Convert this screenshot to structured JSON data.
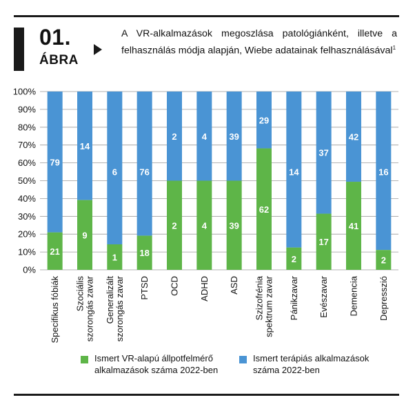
{
  "figure": {
    "number": "01.",
    "label": "ÁBRA",
    "title": "A VR-alkalmazások megoszlása patológiánként, illetve a felhasználás módja alapján, Wiebe adatainak felhasználásával",
    "title_footnote": "1"
  },
  "colors": {
    "green": "#5eb548",
    "blue": "#4a94d4"
  },
  "chart_data": {
    "type": "bar",
    "stacked": true,
    "normalized": true,
    "categories": [
      "Specifikus fóbiák",
      "Szociális szorongás zavar",
      "Generalizált szorongás zavar",
      "PTSD",
      "OCD",
      "ADHD",
      "ASD",
      "Szizofrénia spektrum zavar",
      "Pánikzavar",
      "Evészavar",
      "Demencia",
      "Depresszió"
    ],
    "category_lines": [
      [
        "Specifikus fóbiák"
      ],
      [
        "Szociális",
        "szorongás zavar"
      ],
      [
        "Generalizált",
        "szorongás zavar"
      ],
      [
        "PTSD"
      ],
      [
        "OCD"
      ],
      [
        "ADHD"
      ],
      [
        "ASD"
      ],
      [
        "Szizofrénia",
        "spektrum zavar"
      ],
      [
        "Pánikzavar"
      ],
      [
        "Evészavar"
      ],
      [
        "Demencia"
      ],
      [
        "Depresszió"
      ]
    ],
    "series": [
      {
        "name": "Ismert VR-alapú állpotfelmérő alkalmazások száma 2022-ben",
        "values": [
          21,
          9,
          1,
          18,
          2,
          4,
          39,
          62,
          2,
          17,
          41,
          2
        ],
        "color": "#5eb548"
      },
      {
        "name": "Ismert terápiás alkalmazások száma 2022-ben",
        "values": [
          79,
          14,
          6,
          76,
          2,
          4,
          39,
          29,
          14,
          37,
          42,
          16
        ],
        "color": "#4a94d4"
      }
    ],
    "y_ticks": [
      "0%",
      "10%",
      "20%",
      "30%",
      "40%",
      "50%",
      "60%",
      "70%",
      "80%",
      "90%",
      "100%"
    ],
    "ylim": [
      0,
      100
    ],
    "grid": true
  },
  "legend": {
    "items": [
      {
        "lines": [
          "Ismert VR-alapú állpotfelmérő",
          "alkalmazások száma 2022-ben"
        ]
      },
      {
        "lines": [
          "Ismert terápiás alkalmazások",
          "száma 2022-ben"
        ]
      }
    ]
  }
}
